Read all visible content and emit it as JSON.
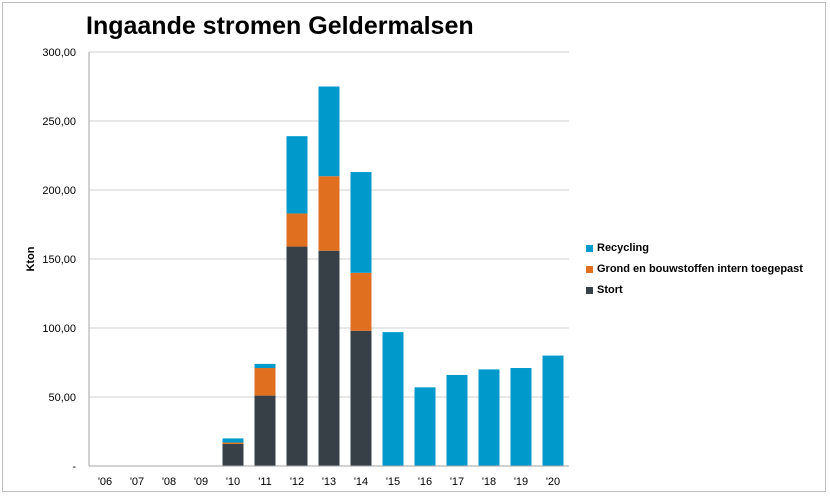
{
  "chart_data": {
    "type": "bar",
    "stacked": true,
    "title": "Ingaande stromen Geldermalsen",
    "xlabel": "",
    "ylabel": "Kton",
    "ylim": [
      0,
      300
    ],
    "yticks": [
      "-",
      "50,00",
      "100,00",
      "150,00",
      "200,00",
      "250,00",
      "300,00"
    ],
    "ytick_values": [
      0,
      50,
      100,
      150,
      200,
      250,
      300
    ],
    "grid": true,
    "legend_position": "right",
    "categories": [
      "'06",
      "'07",
      "'08",
      "'09",
      "'10",
      "'11",
      "'12",
      "'13",
      "'14",
      "'15",
      "'16",
      "'17",
      "'18",
      "'19",
      "'20"
    ],
    "series": [
      {
        "name": "Stort",
        "color": "#374046",
        "values": [
          0,
          0,
          0,
          0,
          16,
          51,
          159,
          156,
          98,
          0,
          0,
          0,
          0,
          0,
          0
        ]
      },
      {
        "name": "Grond en bouwstoffen intern toegepast",
        "color": "#e07020",
        "values": [
          0,
          0,
          0,
          0,
          1,
          20,
          24,
          54,
          42,
          0,
          0,
          0,
          0,
          0,
          0
        ]
      },
      {
        "name": "Recycling",
        "color": "#0099cc",
        "values": [
          0,
          0,
          0,
          0,
          3,
          3,
          56,
          65,
          73,
          97,
          57,
          66,
          70,
          71,
          80
        ]
      }
    ]
  }
}
